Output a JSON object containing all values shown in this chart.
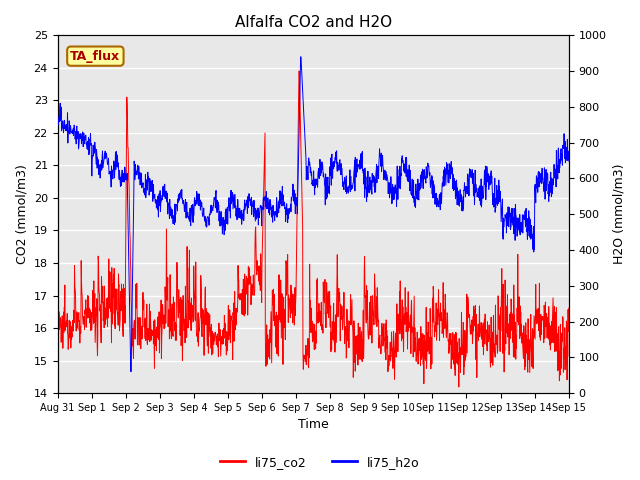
{
  "title": "Alfalfa CO2 and H2O",
  "xlabel": "Time",
  "ylabel_left": "CO2 (mmol/m3)",
  "ylabel_right": "H2O (mmol/m3)",
  "ylim_left": [
    14.0,
    25.0
  ],
  "ylim_right": [
    0,
    1000
  ],
  "yticks_left": [
    14.0,
    15.0,
    16.0,
    17.0,
    18.0,
    19.0,
    20.0,
    21.0,
    22.0,
    23.0,
    24.0,
    25.0
  ],
  "yticks_right": [
    0,
    100,
    200,
    300,
    400,
    500,
    600,
    700,
    800,
    900,
    1000
  ],
  "xtick_labels": [
    "Aug 31",
    "Sep 1",
    "Sep 2",
    "Sep 3",
    "Sep 4",
    "Sep 5",
    "Sep 6",
    "Sep 7",
    "Sep 8",
    "Sep 9",
    "Sep 10",
    "Sep 11",
    "Sep 12",
    "Sep 13",
    "Sep 14",
    "Sep 15"
  ],
  "color_co2": "#FF0000",
  "color_h2o": "#0000FF",
  "legend_label_co2": "li75_co2",
  "legend_label_h2o": "li75_h2o",
  "annotation_text": "TA_flux",
  "annotation_bbox_facecolor": "#FFFFA0",
  "annotation_bbox_edgecolor": "#AA6600",
  "annotation_text_color": "#AA0000",
  "plot_bg_color": "#E8E8E8",
  "grid_color": "#FFFFFF",
  "title_fontsize": 11,
  "axis_label_fontsize": 9,
  "tick_fontsize": 8
}
